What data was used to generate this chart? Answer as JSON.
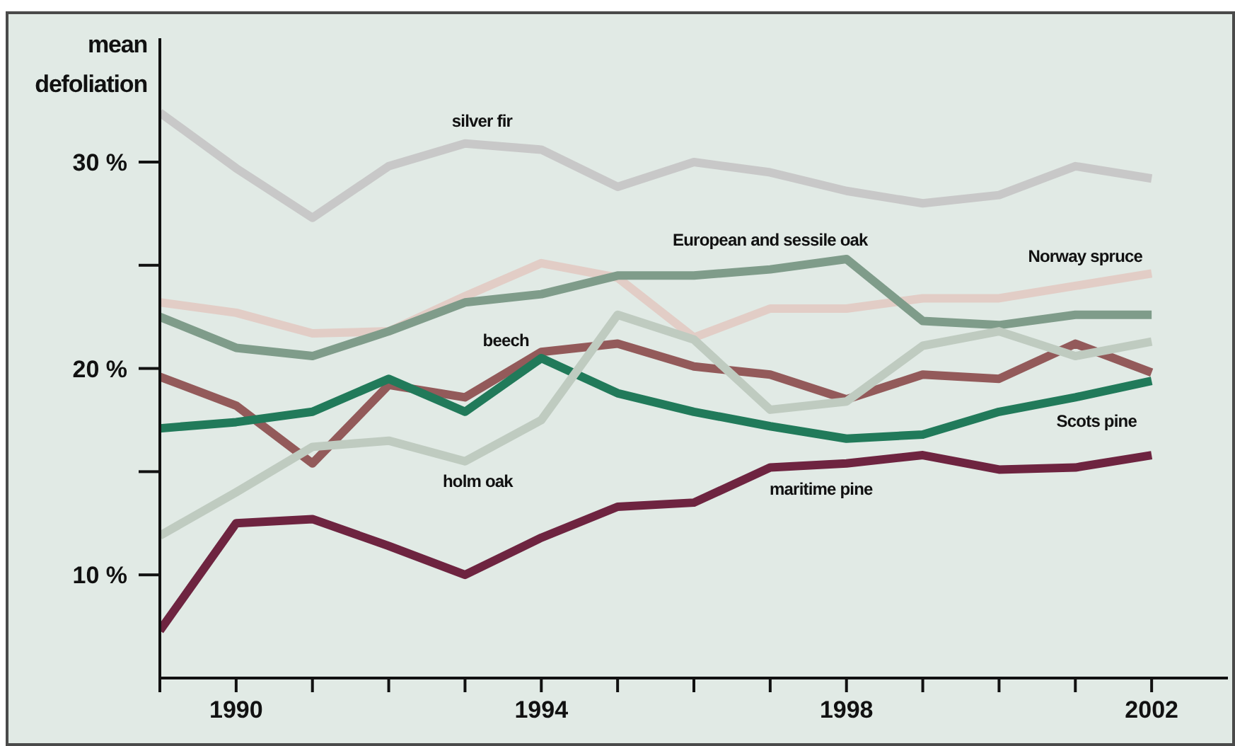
{
  "chart_data": {
    "type": "line",
    "ylabel": "mean defoliation",
    "x": [
      1989,
      1990,
      1991,
      1992,
      1993,
      1994,
      1995,
      1996,
      1997,
      1998,
      1999,
      2000,
      2001,
      2002
    ],
    "xlim": [
      1989,
      2003
    ],
    "xticks": [
      {
        "value": 1989,
        "label": null
      },
      1990,
      {
        "value": 1991,
        "label": null
      },
      {
        "value": 1992,
        "label": null
      },
      {
        "value": 1993,
        "label": null
      },
      1994,
      {
        "value": 1995,
        "label": null
      },
      {
        "value": 1996,
        "label": null
      },
      {
        "value": 1997,
        "label": null
      },
      1998,
      {
        "value": 1999,
        "label": null
      },
      {
        "value": 2000,
        "label": null
      },
      {
        "value": 2001,
        "label": null
      },
      2002
    ],
    "ylim": [
      5,
      36
    ],
    "yticks": [
      {
        "value": 10,
        "label": "10 %"
      },
      {
        "value": 15,
        "label": null
      },
      {
        "value": 20,
        "label": "20 %"
      },
      {
        "value": 25,
        "label": null
      },
      {
        "value": 30,
        "label": "30 %"
      }
    ],
    "grid": false,
    "legend": false,
    "marker": "none",
    "line_style": "solid",
    "series": [
      {
        "name": "silver fir",
        "color": "#c8c8c8",
        "values": [
          32.4,
          29.7,
          27.3,
          29.8,
          30.9,
          30.6,
          28.8,
          30.0,
          29.5,
          28.6,
          28.0,
          28.4,
          29.8,
          29.2
        ]
      },
      {
        "name": "Norway spruce",
        "color": "#e2cdc6",
        "values": [
          23.2,
          22.7,
          21.7,
          21.8,
          23.5,
          25.1,
          24.4,
          21.5,
          22.9,
          22.9,
          23.4,
          23.4,
          24.0,
          24.6
        ]
      },
      {
        "name": "European and sessile oak",
        "color": "#7f9c8a",
        "values": [
          22.5,
          21.0,
          20.6,
          21.8,
          23.2,
          23.6,
          24.5,
          24.5,
          24.8,
          25.3,
          22.3,
          22.1,
          22.6,
          22.6
        ]
      },
      {
        "name": "beech",
        "color": "#935a5a",
        "values": [
          19.6,
          18.2,
          15.4,
          19.2,
          18.6,
          20.8,
          21.2,
          20.1,
          19.7,
          18.5,
          19.7,
          19.5,
          21.2,
          19.8
        ]
      },
      {
        "name": "Scots pine",
        "color": "#217a5a",
        "values": [
          17.1,
          17.4,
          17.9,
          19.5,
          17.9,
          20.5,
          18.8,
          17.9,
          17.2,
          16.6,
          16.8,
          17.9,
          18.6,
          19.4
        ]
      },
      {
        "name": "holm oak",
        "color": "#bfcbc0",
        "values": [
          11.9,
          14.0,
          16.2,
          16.5,
          15.5,
          17.5,
          22.6,
          21.4,
          18.0,
          18.4,
          21.1,
          21.8,
          20.6,
          21.3
        ]
      },
      {
        "name": "maritime pine",
        "color": "#6e2440",
        "values": [
          7.3,
          12.5,
          12.7,
          11.4,
          10.0,
          11.8,
          13.3,
          13.5,
          15.2,
          15.4,
          15.8,
          15.1,
          15.2,
          15.8
        ]
      }
    ]
  }
}
